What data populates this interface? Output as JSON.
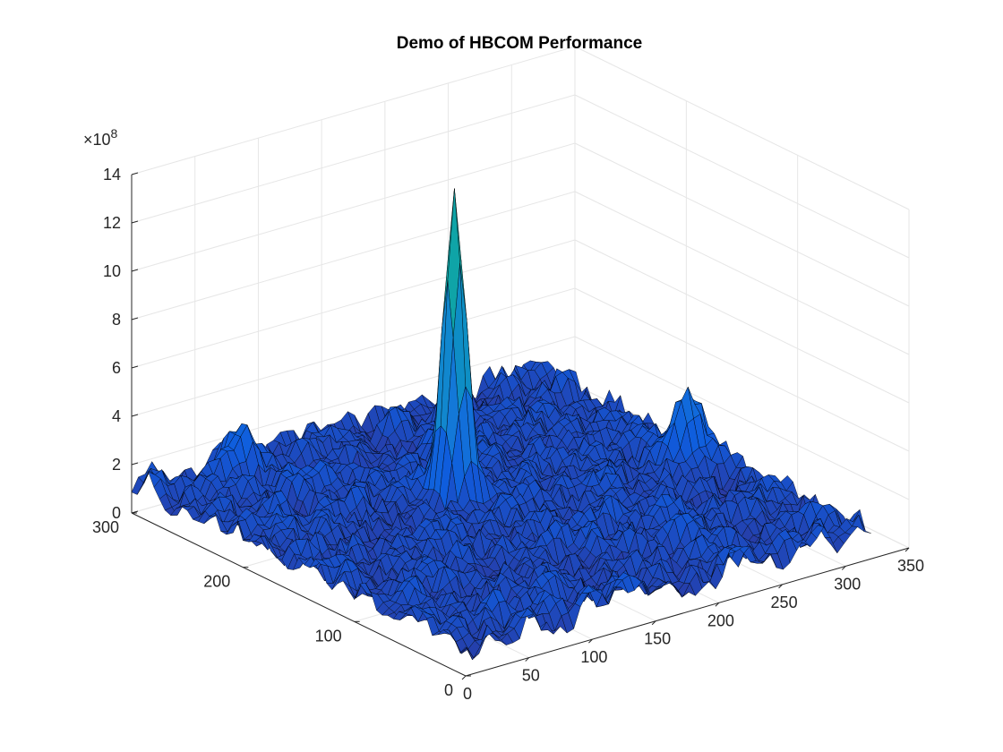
{
  "chart_data": {
    "type": "surface",
    "title": "Demo of HBCOM Performance",
    "xlabel": "",
    "ylabel": "",
    "zlabel": "",
    "x_ticks": [
      0,
      50,
      100,
      150,
      200,
      250,
      300,
      350
    ],
    "y_ticks": [
      0,
      100,
      200,
      300
    ],
    "z_ticks": [
      0,
      2,
      4,
      6,
      8,
      10,
      12,
      14
    ],
    "z_multiplier_base": "×10",
    "z_multiplier_exp": "8",
    "xlim": [
      0,
      350
    ],
    "ylim": [
      0,
      300
    ],
    "zlim": [
      0,
      1400000000
    ],
    "grid": true,
    "colormap": "parula",
    "surface": {
      "x_extent": [
        0,
        320
      ],
      "y_extent": [
        0,
        300
      ],
      "background_level": 120000000,
      "noise_amplitude": 160000000,
      "peak": {
        "x": 150,
        "y": 180,
        "z": 1240000000
      },
      "secondary_peaks": [
        {
          "x": 70,
          "y": 280,
          "z": 300000000
        },
        {
          "x": 300,
          "y": 140,
          "z": 420000000
        }
      ]
    }
  }
}
